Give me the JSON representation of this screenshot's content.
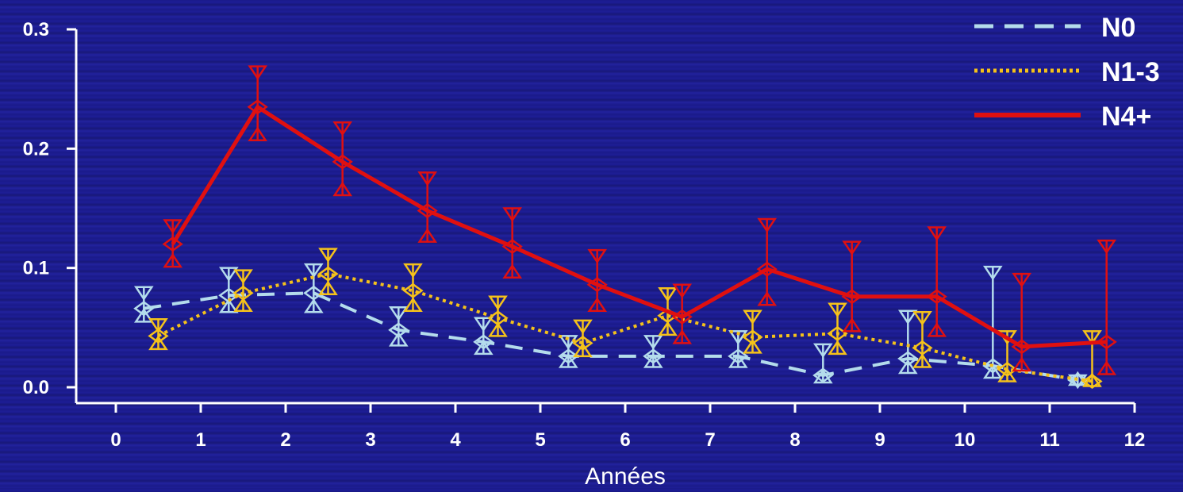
{
  "chart_data": {
    "type": "line",
    "xlabel": "Années",
    "ylabel": "",
    "xlim": [
      0,
      12
    ],
    "ylim": [
      0,
      0.3
    ],
    "x_ticks": [
      "0",
      "1",
      "2",
      "3",
      "4",
      "5",
      "6",
      "7",
      "8",
      "9",
      "10",
      "11",
      "12"
    ],
    "y_ticks": [
      "0.0",
      "0.1",
      "0.2",
      "0.3"
    ],
    "legend_position": "top-right",
    "series": [
      {
        "name": "N0",
        "color": "#b4dcec",
        "style": "dashed",
        "points": [
          {
            "x": 0.33,
            "y": 0.066,
            "lo": 0.055,
            "hi": 0.084
          },
          {
            "x": 1.33,
            "y": 0.077,
            "lo": 0.063,
            "hi": 0.1
          },
          {
            "x": 2.33,
            "y": 0.079,
            "lo": 0.063,
            "hi": 0.103
          },
          {
            "x": 3.33,
            "y": 0.048,
            "lo": 0.035,
            "hi": 0.067
          },
          {
            "x": 4.33,
            "y": 0.038,
            "lo": 0.028,
            "hi": 0.058
          },
          {
            "x": 5.33,
            "y": 0.026,
            "lo": 0.017,
            "hi": 0.043
          },
          {
            "x": 6.33,
            "y": 0.026,
            "lo": 0.017,
            "hi": 0.043
          },
          {
            "x": 7.33,
            "y": 0.026,
            "lo": 0.017,
            "hi": 0.047
          },
          {
            "x": 8.33,
            "y": 0.01,
            "lo": 0.004,
            "hi": 0.036
          },
          {
            "x": 9.33,
            "y": 0.024,
            "lo": 0.012,
            "hi": 0.064
          },
          {
            "x": 10.33,
            "y": 0.018,
            "lo": 0.008,
            "hi": 0.101
          },
          {
            "x": 11.33,
            "y": 0.006,
            "lo": 0.002,
            "hi": 0.01
          }
        ]
      },
      {
        "name": "N1-3",
        "color": "#f5c21a",
        "style": "dotted",
        "points": [
          {
            "x": 0.5,
            "y": 0.043,
            "lo": 0.032,
            "hi": 0.057
          },
          {
            "x": 1.5,
            "y": 0.079,
            "lo": 0.064,
            "hi": 0.098
          },
          {
            "x": 2.5,
            "y": 0.095,
            "lo": 0.078,
            "hi": 0.116
          },
          {
            "x": 3.5,
            "y": 0.081,
            "lo": 0.064,
            "hi": 0.103
          },
          {
            "x": 4.5,
            "y": 0.058,
            "lo": 0.043,
            "hi": 0.076
          },
          {
            "x": 5.5,
            "y": 0.037,
            "lo": 0.026,
            "hi": 0.056
          },
          {
            "x": 6.5,
            "y": 0.06,
            "lo": 0.044,
            "hi": 0.083
          },
          {
            "x": 7.5,
            "y": 0.042,
            "lo": 0.029,
            "hi": 0.064
          },
          {
            "x": 8.5,
            "y": 0.045,
            "lo": 0.028,
            "hi": 0.07
          },
          {
            "x": 9.5,
            "y": 0.033,
            "lo": 0.017,
            "hi": 0.063
          },
          {
            "x": 10.5,
            "y": 0.015,
            "lo": 0.005,
            "hi": 0.047
          },
          {
            "x": 11.5,
            "y": 0.005,
            "lo": 0.001,
            "hi": 0.047
          }
        ]
      },
      {
        "name": "N4+",
        "color": "#e01010",
        "style": "solid",
        "points": [
          {
            "x": 0.67,
            "y": 0.12,
            "lo": 0.101,
            "hi": 0.14
          },
          {
            "x": 1.67,
            "y": 0.235,
            "lo": 0.207,
            "hi": 0.269
          },
          {
            "x": 2.67,
            "y": 0.189,
            "lo": 0.161,
            "hi": 0.222
          },
          {
            "x": 3.67,
            "y": 0.148,
            "lo": 0.122,
            "hi": 0.18
          },
          {
            "x": 4.67,
            "y": 0.118,
            "lo": 0.092,
            "hi": 0.15
          },
          {
            "x": 5.67,
            "y": 0.086,
            "lo": 0.064,
            "hi": 0.115
          },
          {
            "x": 6.67,
            "y": 0.059,
            "lo": 0.037,
            "hi": 0.086
          },
          {
            "x": 7.67,
            "y": 0.099,
            "lo": 0.069,
            "hi": 0.141
          },
          {
            "x": 8.67,
            "y": 0.076,
            "lo": 0.047,
            "hi": 0.122
          },
          {
            "x": 9.67,
            "y": 0.076,
            "lo": 0.043,
            "hi": 0.134
          },
          {
            "x": 10.67,
            "y": 0.034,
            "lo": 0.014,
            "hi": 0.095
          },
          {
            "x": 11.67,
            "y": 0.038,
            "lo": 0.011,
            "hi": 0.123
          }
        ]
      }
    ]
  }
}
